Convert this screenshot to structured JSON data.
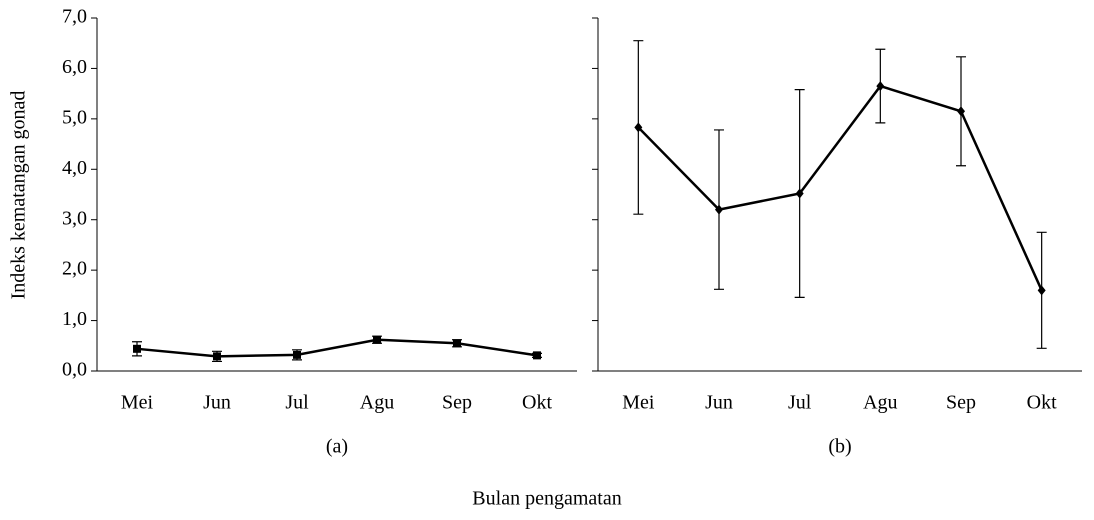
{
  "chart_data": [
    {
      "type": "line",
      "subtitle": "(a)",
      "ylabel": "Indeks kematangan gonad",
      "categories": [
        "Mei",
        "Jun",
        "Jul",
        "Agu",
        "Sep",
        "Okt"
      ],
      "values": [
        0.44,
        0.29,
        0.32,
        0.62,
        0.55,
        0.31
      ],
      "errors": [
        0.14,
        0.1,
        0.1,
        0.07,
        0.07,
        0.04
      ],
      "color": "#000000",
      "marker": "square",
      "ylim": [
        0,
        7
      ],
      "yticks": [
        {
          "value": 0,
          "label": "0,0"
        },
        {
          "value": 1,
          "label": "1,0"
        },
        {
          "value": 2,
          "label": "2,0"
        },
        {
          "value": 3,
          "label": "3,0"
        },
        {
          "value": 4,
          "label": "4,0"
        },
        {
          "value": 5,
          "label": "5,0"
        },
        {
          "value": 6,
          "label": "6,0"
        },
        {
          "value": 7,
          "label": "7,0"
        }
      ]
    },
    {
      "type": "line",
      "subtitle": "(b)",
      "categories": [
        "Mei",
        "Jun",
        "Jul",
        "Agu",
        "Sep",
        "Okt"
      ],
      "values": [
        4.83,
        3.2,
        3.52,
        5.65,
        5.15,
        1.6
      ],
      "errors": [
        1.72,
        1.58,
        2.06,
        0.73,
        1.08,
        1.15
      ],
      "color": "#000000",
      "marker": "diamond",
      "ylim": [
        0,
        7
      ],
      "yticks": [
        0,
        1,
        2,
        3,
        4,
        5,
        6,
        7
      ]
    }
  ],
  "xlabel": "Bulan pengamatan"
}
